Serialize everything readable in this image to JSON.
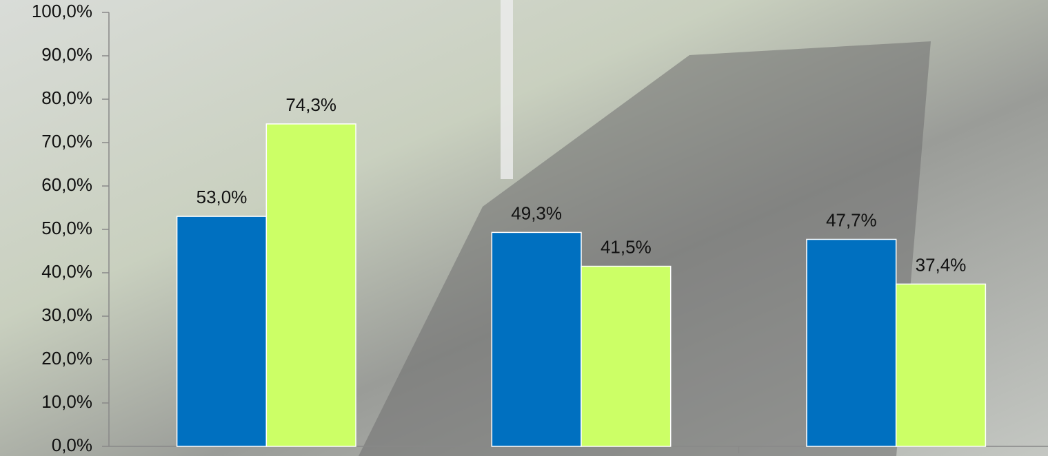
{
  "chart_data": {
    "type": "bar",
    "categories": [
      null,
      null,
      null
    ],
    "series": [
      {
        "color": "#0070c0",
        "values": [
          53.0,
          49.3,
          47.7
        ],
        "value_labels": [
          "53,0%",
          "49,3%",
          "47,7%"
        ]
      },
      {
        "color": "#ccff66",
        "values": [
          74.3,
          41.5,
          37.4
        ],
        "value_labels": [
          "74,3%",
          "41,5%",
          "37,4%"
        ]
      }
    ],
    "ylim": [
      0,
      100
    ],
    "yticks": [
      {
        "value": 0,
        "label": "0,0%"
      },
      {
        "value": 10,
        "label": "10,0%"
      },
      {
        "value": 20,
        "label": "20,0%"
      },
      {
        "value": 30,
        "label": "30,0%"
      },
      {
        "value": 40,
        "label": "40,0%"
      },
      {
        "value": 50,
        "label": "50,0%"
      },
      {
        "value": 60,
        "label": "60,0%"
      },
      {
        "value": 70,
        "label": "70,0%"
      },
      {
        "value": 80,
        "label": "80,0%"
      },
      {
        "value": 90,
        "label": "90,0%"
      },
      {
        "value": 100,
        "label": "100,0%"
      }
    ]
  }
}
